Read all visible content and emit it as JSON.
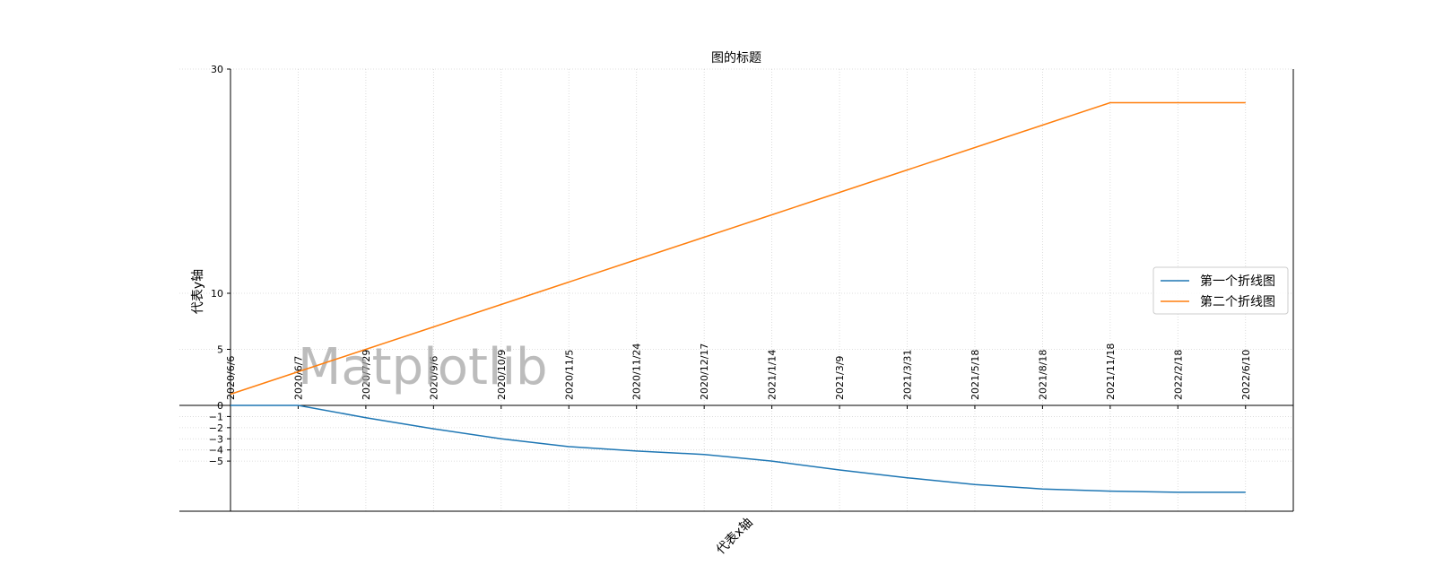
{
  "chart_data": {
    "type": "line",
    "title": "图的标题",
    "xlabel": "代表x轴",
    "ylabel": "代表y轴",
    "watermark": "Matplotlib",
    "categories": [
      "2020/6/6",
      "2020/6/7",
      "2020/7/29",
      "2020/9/6",
      "2020/10/9",
      "2020/11/5",
      "2020/11/24",
      "2020/12/17",
      "2021/1/14",
      "2021/3/9",
      "2021/3/31",
      "2021/5/18",
      "2021/8/18",
      "2021/11/18",
      "2022/2/18",
      "2022/6/10"
    ],
    "series": [
      {
        "name": "第一个折线图",
        "color": "#1f77b4",
        "values": [
          0,
          0,
          -1.1,
          -2.1,
          -3.0,
          -3.7,
          -4.1,
          -4.4,
          -5.0,
          -5.8,
          -6.5,
          -7.1,
          -7.5,
          -7.7,
          -7.8,
          -7.8
        ]
      },
      {
        "name": "第二个折线图",
        "color": "#ff7f0e",
        "values": [
          1,
          3,
          5,
          7,
          9,
          11,
          13,
          15,
          17,
          19,
          21,
          23,
          25,
          27,
          27,
          27
        ]
      }
    ],
    "yticks": [
      30,
      10,
      5,
      0,
      -1,
      -2,
      -3,
      -4,
      -5
    ],
    "ylim": [
      -9.5,
      30
    ],
    "grid": true,
    "legend_position": "center-right"
  }
}
